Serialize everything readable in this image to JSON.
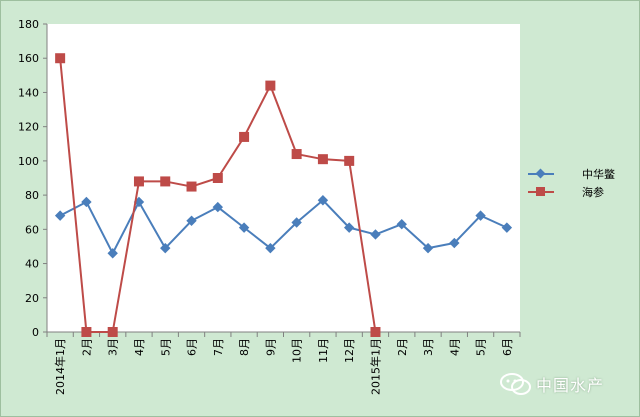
{
  "chart_data": {
    "type": "line",
    "title": "",
    "xlabel": "",
    "ylabel": "",
    "ylim": [
      0,
      180
    ],
    "yticks": [
      0,
      20,
      40,
      60,
      80,
      100,
      120,
      140,
      160,
      180
    ],
    "grid": false,
    "legend_position": "right",
    "categories": [
      "2014年1月",
      "2月",
      "3月",
      "4月",
      "5月",
      "6月",
      "7月",
      "8月",
      "9月",
      "10月",
      "11月",
      "12月",
      "2015年1月",
      "2月",
      "3月",
      "4月",
      "5月",
      "6月"
    ],
    "series": [
      {
        "name": "中华鳖",
        "color": "#4a7ebb",
        "marker": "diamond",
        "values": [
          68,
          76,
          46,
          76,
          49,
          65,
          73,
          61,
          49,
          64,
          77,
          61,
          57,
          63,
          49,
          52,
          68,
          61
        ]
      },
      {
        "name": "海参",
        "color": "#be4b48",
        "marker": "square",
        "values": [
          160,
          0,
          0,
          88,
          88,
          85,
          90,
          114,
          144,
          104,
          101,
          100,
          0,
          null,
          null,
          null,
          null,
          null
        ]
      }
    ]
  },
  "watermark": {
    "text": "中国水产",
    "icon": "wechat-icon"
  }
}
